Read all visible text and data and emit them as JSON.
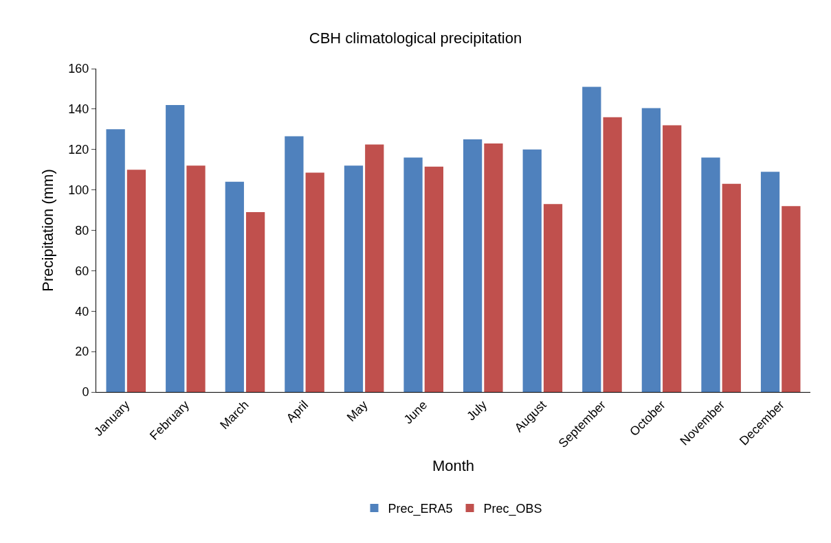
{
  "chart_data": {
    "type": "bar",
    "title": "CBH climatological precipitation",
    "xlabel": "Month",
    "ylabel": "Precipitation (mm)",
    "categories": [
      "January",
      "February",
      "March",
      "April",
      "May",
      "June",
      "July",
      "August",
      "September",
      "October",
      "November",
      "December"
    ],
    "series": [
      {
        "name": "Prec_ERA5",
        "color": "#4f81bd",
        "values": [
          130,
          142,
          104,
          126.5,
          112,
          116,
          125,
          120,
          151,
          140.5,
          116,
          109
        ]
      },
      {
        "name": "Prec_OBS",
        "color": "#c0504d",
        "values": [
          110,
          112,
          89,
          108.5,
          122.5,
          111.5,
          123,
          93,
          136,
          132,
          103,
          92
        ]
      }
    ],
    "ylim": [
      0,
      160
    ],
    "yticks": [
      0,
      20,
      40,
      60,
      80,
      100,
      120,
      140,
      160
    ],
    "legend": "bottom"
  }
}
